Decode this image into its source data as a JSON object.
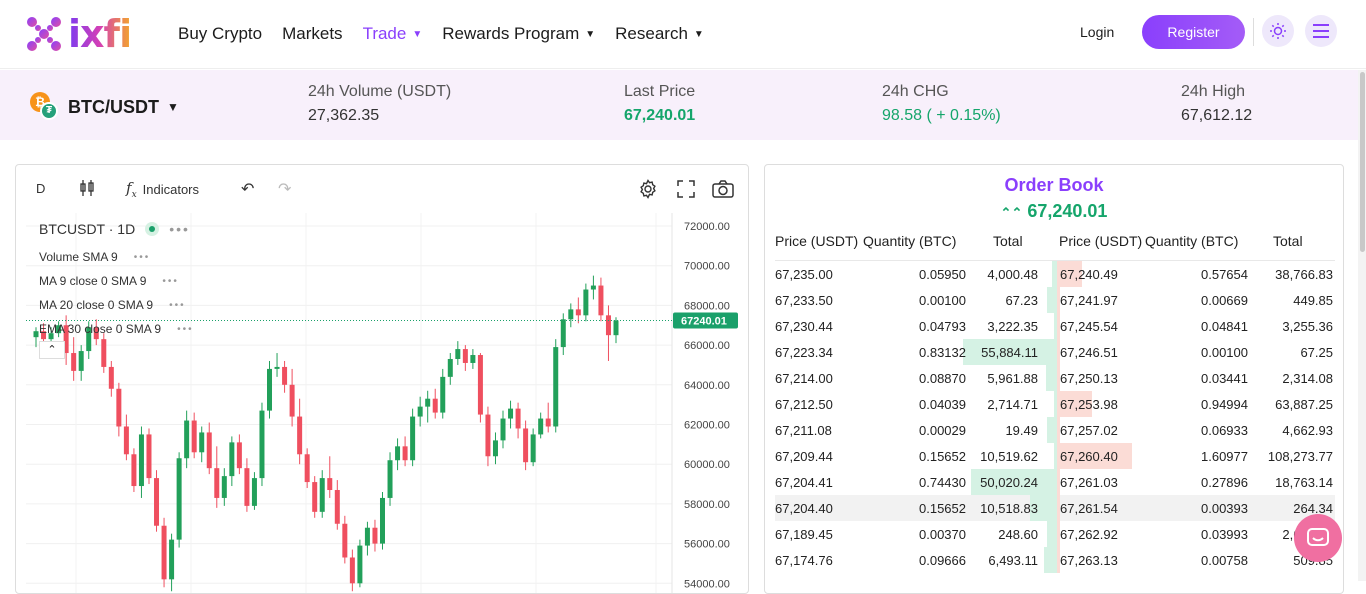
{
  "nav": {
    "logo": "ixfi",
    "items": [
      {
        "label": "Buy Crypto",
        "caret": false,
        "active": false
      },
      {
        "label": "Markets",
        "caret": false,
        "active": false
      },
      {
        "label": "Trade",
        "caret": true,
        "active": true
      },
      {
        "label": "Rewards Program",
        "caret": true,
        "active": false
      },
      {
        "label": "Research",
        "caret": true,
        "active": false
      }
    ],
    "login": "Login",
    "register": "Register"
  },
  "ticker": {
    "pair": "BTC/USDT",
    "volume_label": "24h Volume (USDT)",
    "volume": "27,362.35",
    "last_label": "Last Price",
    "last": "67,240.01",
    "chg_label": "24h CHG",
    "chg": "98.58 ( + 0.15%)",
    "high_label": "24h High",
    "high": "67,612.12"
  },
  "chart": {
    "interval": "D",
    "indicators_label": "Indicators",
    "symbol": "BTCUSDT · 1D",
    "studies": [
      "Volume SMA 9",
      "MA 9 close 0 SMA 9",
      "MA 20 close 0 SMA 9",
      "EMA 30 close 0 SMA 9"
    ],
    "price_tag": "67240.01",
    "colors": {
      "up": "#22a05a",
      "down": "#ef4f5f"
    }
  },
  "chart_data": {
    "type": "candlestick",
    "y_ticks": [
      "72000.00",
      "70000.00",
      "68000.00",
      "66000.00",
      "64000.00",
      "62000.00",
      "60000.00",
      "58000.00",
      "56000.00",
      "54000.00"
    ],
    "ylim": [
      53800,
      72800
    ],
    "last_price": 67240.01,
    "candles": [
      [
        66400,
        66900,
        65900,
        66700
      ],
      [
        66700,
        67100,
        66200,
        66300
      ],
      [
        66300,
        66900,
        65800,
        66600
      ],
      [
        66600,
        67200,
        66400,
        67000
      ],
      [
        67000,
        67500,
        65000,
        65600
      ],
      [
        65600,
        66400,
        64200,
        64700
      ],
      [
        64700,
        66000,
        64200,
        65700
      ],
      [
        65700,
        67200,
        65300,
        66900
      ],
      [
        66900,
        67300,
        66000,
        66300
      ],
      [
        66300,
        66600,
        64600,
        64900
      ],
      [
        64900,
        65200,
        63400,
        63800
      ],
      [
        63800,
        64100,
        61400,
        61900
      ],
      [
        61900,
        62500,
        60200,
        60500
      ],
      [
        60500,
        60800,
        58600,
        58900
      ],
      [
        58900,
        61900,
        58300,
        61500
      ],
      [
        61500,
        61800,
        59000,
        59300
      ],
      [
        59300,
        59700,
        56600,
        56900
      ],
      [
        56900,
        57300,
        53800,
        54200
      ],
      [
        54200,
        56500,
        53600,
        56200
      ],
      [
        56200,
        60600,
        55800,
        60300
      ],
      [
        60300,
        62700,
        59800,
        62200
      ],
      [
        62200,
        62600,
        60300,
        60600
      ],
      [
        60600,
        61900,
        60100,
        61600
      ],
      [
        61600,
        62100,
        59500,
        59800
      ],
      [
        59800,
        60900,
        57800,
        58300
      ],
      [
        58300,
        59800,
        57900,
        59400
      ],
      [
        59400,
        61400,
        58900,
        61100
      ],
      [
        61100,
        61500,
        59500,
        59800
      ],
      [
        59800,
        60300,
        57600,
        57900
      ],
      [
        57900,
        59600,
        57700,
        59300
      ],
      [
        59300,
        63100,
        58900,
        62700
      ],
      [
        62700,
        65200,
        62300,
        64800
      ],
      [
        64800,
        65600,
        64400,
        64900
      ],
      [
        64900,
        65200,
        63600,
        64000
      ],
      [
        64000,
        64800,
        61900,
        62400
      ],
      [
        62400,
        63300,
        60000,
        60500
      ],
      [
        60500,
        60800,
        58800,
        59100
      ],
      [
        59100,
        59400,
        57300,
        57600
      ],
      [
        57600,
        59700,
        57300,
        59300
      ],
      [
        59300,
        60400,
        58300,
        58700
      ],
      [
        58700,
        59200,
        56700,
        57000
      ],
      [
        57000,
        57400,
        55000,
        55300
      ],
      [
        55300,
        55700,
        53600,
        54000
      ],
      [
        54000,
        56200,
        53800,
        55900
      ],
      [
        55900,
        57100,
        55400,
        56800
      ],
      [
        56800,
        57200,
        55600,
        56000
      ],
      [
        56000,
        58600,
        55700,
        58300
      ],
      [
        58300,
        60600,
        57900,
        60200
      ],
      [
        60200,
        61300,
        59700,
        60900
      ],
      [
        60900,
        61400,
        59900,
        60200
      ],
      [
        60200,
        62800,
        59900,
        62400
      ],
      [
        62400,
        63400,
        61900,
        62900
      ],
      [
        62900,
        63700,
        62100,
        63300
      ],
      [
        63300,
        63800,
        62300,
        62600
      ],
      [
        62600,
        64800,
        62300,
        64400
      ],
      [
        64400,
        65600,
        64000,
        65300
      ],
      [
        65300,
        66200,
        65000,
        65800
      ],
      [
        65800,
        66000,
        64700,
        65100
      ],
      [
        65100,
        65800,
        64800,
        65500
      ],
      [
        65500,
        65600,
        62100,
        62500
      ],
      [
        62500,
        62900,
        59900,
        60400
      ],
      [
        60400,
        61600,
        60000,
        61200
      ],
      [
        61200,
        62700,
        60800,
        62300
      ],
      [
        62300,
        63200,
        61800,
        62800
      ],
      [
        62800,
        63100,
        61300,
        61800
      ],
      [
        61800,
        62200,
        59700,
        60100
      ],
      [
        60100,
        61800,
        59900,
        61500
      ],
      [
        61500,
        62600,
        61300,
        62300
      ],
      [
        62300,
        63100,
        61600,
        61900
      ],
      [
        61900,
        66300,
        61600,
        65900
      ],
      [
        65900,
        67600,
        65500,
        67300
      ],
      [
        67300,
        68100,
        66900,
        67800
      ],
      [
        67800,
        68400,
        67100,
        67500
      ],
      [
        67500,
        69100,
        67200,
        68800
      ],
      [
        68800,
        69500,
        68300,
        69000
      ],
      [
        69000,
        69400,
        67200,
        67500
      ],
      [
        67500,
        68000,
        65200,
        66500
      ],
      [
        66500,
        67400,
        66100,
        67240
      ]
    ]
  },
  "orderbook": {
    "title": "Order Book",
    "price": "67,240.01",
    "headers": [
      "Price (USDT)",
      "Quantity (BTC)",
      "Total"
    ],
    "bids": [
      {
        "price": "67,235.00",
        "qty": "0.05950",
        "total": "4,000.48",
        "depth": 0.02
      },
      {
        "price": "67,233.50",
        "qty": "0.00100",
        "total": "67.23",
        "depth": 0.0
      },
      {
        "price": "67,230.44",
        "qty": "0.04793",
        "total": "3,222.35",
        "depth": 0.01
      },
      {
        "price": "67,223.34",
        "qty": "0.83132",
        "total": "55,884.11",
        "depth": 0.35
      },
      {
        "price": "67,214.00",
        "qty": "0.08870",
        "total": "5,961.88",
        "depth": 0.04
      },
      {
        "price": "67,212.50",
        "qty": "0.04039",
        "total": "2,714.71",
        "depth": 0.01
      },
      {
        "price": "67,211.08",
        "qty": "0.00029",
        "total": "19.49",
        "depth": 0.0
      },
      {
        "price": "67,209.44",
        "qty": "0.15652",
        "total": "10,519.62",
        "depth": 0.01
      },
      {
        "price": "67,204.41",
        "qty": "0.74430",
        "total": "50,020.24",
        "depth": 0.32
      },
      {
        "price": "67,204.40",
        "qty": "0.15652",
        "total": "10,518.83",
        "depth": 0.1
      },
      {
        "price": "67,189.45",
        "qty": "0.00370",
        "total": "248.60",
        "depth": 0.0
      },
      {
        "price": "67,174.76",
        "qty": "0.09666",
        "total": "6,493.11",
        "depth": 0.05
      }
    ],
    "asks": [
      {
        "price": "67,240.49",
        "qty": "0.57654",
        "total": "38,766.83",
        "depth": 0.1
      },
      {
        "price": "67,241.97",
        "qty": "0.00669",
        "total": "449.85",
        "depth": 0.0
      },
      {
        "price": "67,245.54",
        "qty": "0.04841",
        "total": "3,255.36",
        "depth": 0.0
      },
      {
        "price": "67,246.51",
        "qty": "0.00100",
        "total": "67.25",
        "depth": 0.0
      },
      {
        "price": "67,250.13",
        "qty": "0.03441",
        "total": "2,314.08",
        "depth": 0.0
      },
      {
        "price": "67,253.98",
        "qty": "0.94994",
        "total": "63,887.25",
        "depth": 0.14
      },
      {
        "price": "67,257.02",
        "qty": "0.06933",
        "total": "4,662.93",
        "depth": 0.0
      },
      {
        "price": "67,260.40",
        "qty": "1.60977",
        "total": "108,273.77",
        "depth": 0.3
      },
      {
        "price": "67,261.03",
        "qty": "0.27896",
        "total": "18,763.14",
        "depth": 0.0
      },
      {
        "price": "67,261.54",
        "qty": "0.00393",
        "total": "264.34",
        "depth": 0.0
      },
      {
        "price": "67,262.92",
        "qty": "0.03993",
        "total": "2,685.77",
        "depth": 0.0
      },
      {
        "price": "67,263.13",
        "qty": "0.00758",
        "total": "509.85",
        "depth": 0.0
      }
    ]
  }
}
